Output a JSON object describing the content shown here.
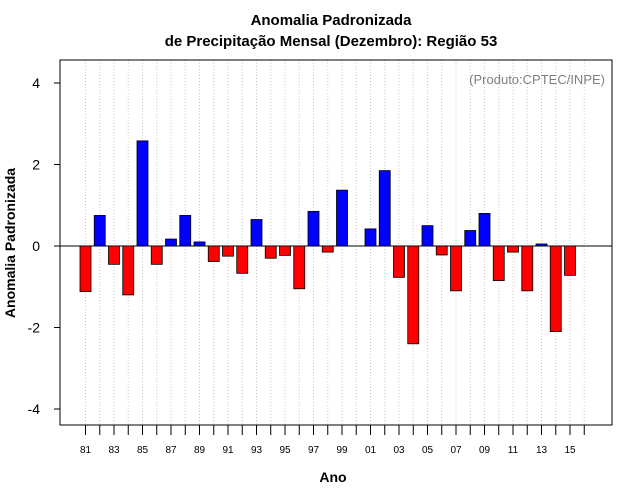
{
  "chart_data": {
    "type": "bar",
    "title": [
      "Anomalia Padronizada",
      "de Precipitação Mensal (Dezembro): Região 53"
    ],
    "xlabel": "Ano",
    "ylabel": "Anomalia Padronizada",
    "credit": "(Produto:CPTEC/INPE)",
    "ylim": [
      -4.4,
      4.6
    ],
    "yticks": [
      "4",
      "2",
      "0",
      "-2",
      "-4"
    ],
    "xtick_labels": [
      "81",
      "83",
      "85",
      "87",
      "89",
      "91",
      "93",
      "95",
      "97",
      "99",
      "01",
      "03",
      "05",
      "07",
      "09",
      "11",
      "13",
      "15"
    ],
    "grid": true,
    "positive_color": "#0000ff",
    "negative_color": "#ff0000",
    "categories": [
      "1981",
      "1982",
      "1983",
      "1984",
      "1985",
      "1986",
      "1987",
      "1988",
      "1989",
      "1990",
      "1991",
      "1992",
      "1993",
      "1994",
      "1995",
      "1996",
      "1997",
      "1998",
      "1999",
      "2000",
      "2001",
      "2002",
      "2003",
      "2004",
      "2005",
      "2006",
      "2007",
      "2008",
      "2009",
      "2010",
      "2011",
      "2012",
      "2013",
      "2014",
      "2015"
    ],
    "values": [
      -1.12,
      0.75,
      -0.45,
      -1.2,
      2.58,
      -0.45,
      0.17,
      0.75,
      0.1,
      -0.38,
      -0.25,
      -0.67,
      0.65,
      -0.3,
      -0.23,
      -1.05,
      0.85,
      -0.15,
      1.37,
      0.0,
      0.42,
      1.85,
      -0.77,
      -2.4,
      0.5,
      -0.22,
      -1.1,
      0.38,
      0.8,
      -0.85,
      -0.15,
      -1.1,
      0.05,
      -2.1,
      -0.72
    ]
  }
}
